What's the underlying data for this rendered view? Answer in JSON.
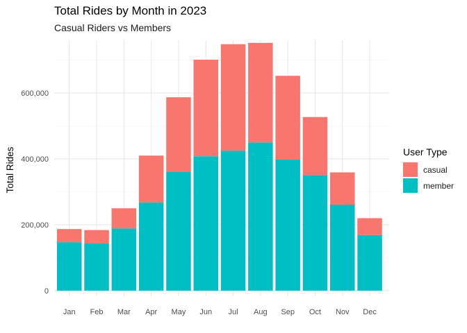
{
  "chart_data": {
    "type": "bar",
    "stacked": true,
    "title": "Total Rides by Month in 2023",
    "subtitle": "Casual Riders vs Members",
    "xlabel": "",
    "ylabel": "Total Rides",
    "ylim": [
      0,
      760000
    ],
    "yticks": [
      0,
      200000,
      400000,
      600000
    ],
    "ytick_labels": [
      "0",
      "200,000",
      "400,000",
      "600,000"
    ],
    "grid": true,
    "legend": {
      "title": "User Type",
      "position": "right"
    },
    "categories": [
      "Jan",
      "Feb",
      "Mar",
      "Apr",
      "May",
      "Jun",
      "Jul",
      "Aug",
      "Sep",
      "Oct",
      "Nov",
      "Dec"
    ],
    "series": [
      {
        "name": "member",
        "color": "#00BFC4",
        "values": [
          147000,
          144000,
          189000,
          268000,
          360000,
          408000,
          425000,
          450000,
          398000,
          351000,
          261000,
          169000
        ]
      },
      {
        "name": "casual",
        "color": "#F8766D",
        "values": [
          40000,
          40000,
          61000,
          142000,
          227000,
          293000,
          323000,
          302000,
          254000,
          176000,
          98000,
          51000
        ]
      }
    ]
  }
}
